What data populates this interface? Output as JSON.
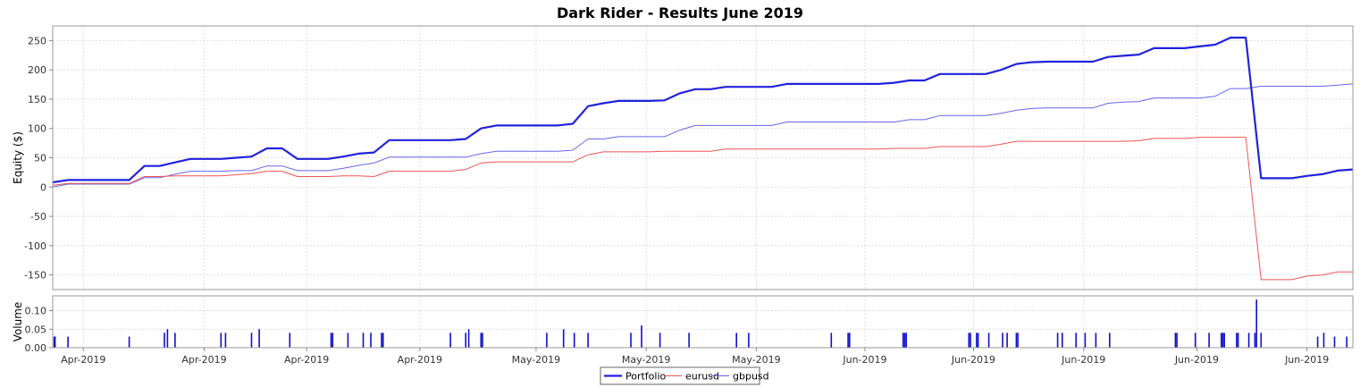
{
  "chart_data": {
    "type": "line",
    "title": "Dark Rider - Results June 2019",
    "upper": {
      "ylabel": "Equity ($)",
      "ylim": [
        -175,
        275
      ],
      "yticks": [
        250,
        200,
        150,
        100,
        50,
        0,
        -50,
        -100,
        -150
      ],
      "x": [
        0,
        1,
        2,
        3,
        4,
        5,
        6,
        7,
        8,
        9,
        10,
        11,
        12,
        13,
        14,
        15,
        16,
        17,
        18,
        19,
        20,
        21,
        22,
        23,
        24,
        25,
        26,
        27,
        28,
        29,
        30,
        31,
        32,
        33,
        34,
        35,
        36,
        37,
        38,
        39,
        40,
        41,
        42,
        43,
        44,
        45,
        46,
        47,
        48,
        49,
        50,
        51,
        52,
        53,
        54,
        55,
        56,
        57,
        58,
        59,
        60,
        61,
        62,
        63,
        64,
        65,
        66,
        67,
        68,
        69,
        70,
        71,
        72,
        73,
        74,
        75,
        76,
        77,
        78,
        79,
        80,
        81,
        82,
        83,
        84,
        85
      ],
      "series": [
        {
          "name": "Portfolio",
          "color": "#2222dd",
          "width": 2.2,
          "values": [
            8,
            12,
            12,
            12,
            12,
            12,
            36,
            36,
            42,
            48,
            48,
            48,
            50,
            52,
            66,
            66,
            48,
            48,
            48,
            52,
            57,
            59,
            80,
            80,
            80,
            80,
            80,
            82,
            100,
            105,
            105,
            105,
            105,
            105,
            108,
            138,
            143,
            147,
            147,
            147,
            148,
            160,
            167,
            167,
            171,
            171,
            171,
            171,
            176,
            176,
            176,
            176,
            176,
            176,
            176,
            178,
            182,
            182,
            193,
            193,
            193,
            193,
            200,
            210,
            213,
            214,
            214,
            214,
            214,
            222,
            224,
            226,
            237,
            237,
            237,
            240,
            243,
            255,
            255,
            15,
            15,
            15,
            19,
            22,
            28,
            30
          ]
        },
        {
          "name": "eurusd",
          "color": "#ee5555",
          "width": 1,
          "values": [
            3,
            6,
            6,
            6,
            6,
            6,
            18,
            18,
            19,
            19,
            19,
            19,
            21,
            23,
            27,
            27,
            18,
            18,
            18,
            19,
            19,
            18,
            27,
            27,
            27,
            27,
            27,
            30,
            41,
            43,
            43,
            43,
            43,
            43,
            43,
            55,
            60,
            60,
            60,
            60,
            61,
            61,
            61,
            61,
            65,
            65,
            65,
            65,
            65,
            65,
            65,
            65,
            65,
            65,
            65,
            66,
            66,
            66,
            69,
            69,
            69,
            69,
            73,
            78,
            78,
            78,
            78,
            78,
            78,
            78,
            78,
            79,
            83,
            83,
            83,
            85,
            85,
            85,
            85,
            -158,
            -158,
            -158,
            -152,
            -150,
            -145,
            -145
          ]
        },
        {
          "name": "gbpusd",
          "color": "#6666ee",
          "width": 1,
          "values": [
            0,
            5,
            5,
            5,
            5,
            5,
            16,
            16,
            22,
            27,
            27,
            27,
            28,
            28,
            36,
            36,
            28,
            28,
            28,
            32,
            37,
            41,
            51,
            51,
            51,
            51,
            51,
            51,
            57,
            61,
            61,
            61,
            61,
            61,
            63,
            82,
            82,
            86,
            86,
            86,
            86,
            97,
            105,
            105,
            105,
            105,
            105,
            105,
            111,
            111,
            111,
            111,
            111,
            111,
            111,
            111,
            115,
            115,
            122,
            122,
            122,
            122,
            126,
            131,
            134,
            135,
            135,
            135,
            135,
            143,
            145,
            146,
            152,
            152,
            152,
            152,
            155,
            168,
            168,
            172,
            172,
            172,
            172,
            172,
            174,
            176
          ]
        }
      ]
    },
    "lower": {
      "ylabel": "Volume",
      "ylim": [
        0,
        0.14
      ],
      "yticks": [
        "0.10",
        "0.05",
        "0.00"
      ],
      "bars": [
        {
          "x": 0.1,
          "v": 0.03
        },
        {
          "x": 0.15,
          "v": 0.03
        },
        {
          "x": 1.0,
          "v": 0.03
        },
        {
          "x": 5.0,
          "v": 0.03
        },
        {
          "x": 7.3,
          "v": 0.04
        },
        {
          "x": 7.5,
          "v": 0.05
        },
        {
          "x": 8.0,
          "v": 0.04
        },
        {
          "x": 11.0,
          "v": 0.04
        },
        {
          "x": 11.3,
          "v": 0.04
        },
        {
          "x": 13.0,
          "v": 0.04
        },
        {
          "x": 13.5,
          "v": 0.05
        },
        {
          "x": 15.5,
          "v": 0.04
        },
        {
          "x": 18.2,
          "v": 0.04
        },
        {
          "x": 18.3,
          "v": 0.04
        },
        {
          "x": 19.3,
          "v": 0.04
        },
        {
          "x": 20.3,
          "v": 0.04
        },
        {
          "x": 20.8,
          "v": 0.04
        },
        {
          "x": 21.5,
          "v": 0.04
        },
        {
          "x": 21.6,
          "v": 0.04
        },
        {
          "x": 26.0,
          "v": 0.04
        },
        {
          "x": 27.0,
          "v": 0.04
        },
        {
          "x": 27.2,
          "v": 0.05
        },
        {
          "x": 28.0,
          "v": 0.04
        },
        {
          "x": 28.1,
          "v": 0.04
        },
        {
          "x": 32.3,
          "v": 0.04
        },
        {
          "x": 33.4,
          "v": 0.05
        },
        {
          "x": 34.1,
          "v": 0.04
        },
        {
          "x": 35.0,
          "v": 0.04
        },
        {
          "x": 37.8,
          "v": 0.04
        },
        {
          "x": 38.5,
          "v": 0.06
        },
        {
          "x": 39.7,
          "v": 0.04
        },
        {
          "x": 41.6,
          "v": 0.04
        },
        {
          "x": 44.7,
          "v": 0.04
        },
        {
          "x": 45.5,
          "v": 0.04
        },
        {
          "x": 50.9,
          "v": 0.04
        },
        {
          "x": 52.0,
          "v": 0.04
        },
        {
          "x": 52.1,
          "v": 0.04
        },
        {
          "x": 55.6,
          "v": 0.04
        },
        {
          "x": 55.7,
          "v": 0.04
        },
        {
          "x": 55.8,
          "v": 0.04
        },
        {
          "x": 59.9,
          "v": 0.04
        },
        {
          "x": 60.0,
          "v": 0.04
        },
        {
          "x": 60.4,
          "v": 0.04
        },
        {
          "x": 60.5,
          "v": 0.04
        },
        {
          "x": 61.2,
          "v": 0.04
        },
        {
          "x": 62.1,
          "v": 0.04
        },
        {
          "x": 62.4,
          "v": 0.04
        },
        {
          "x": 63.0,
          "v": 0.04
        },
        {
          "x": 63.1,
          "v": 0.04
        },
        {
          "x": 65.7,
          "v": 0.04
        },
        {
          "x": 66.0,
          "v": 0.04
        },
        {
          "x": 66.9,
          "v": 0.04
        },
        {
          "x": 67.5,
          "v": 0.04
        },
        {
          "x": 68.2,
          "v": 0.04
        },
        {
          "x": 69.1,
          "v": 0.04
        },
        {
          "x": 73.4,
          "v": 0.04
        },
        {
          "x": 73.5,
          "v": 0.04
        },
        {
          "x": 74.7,
          "v": 0.04
        },
        {
          "x": 75.6,
          "v": 0.04
        },
        {
          "x": 76.4,
          "v": 0.04
        },
        {
          "x": 76.5,
          "v": 0.04
        },
        {
          "x": 76.6,
          "v": 0.04
        },
        {
          "x": 77.4,
          "v": 0.04
        },
        {
          "x": 77.5,
          "v": 0.04
        },
        {
          "x": 78.2,
          "v": 0.04
        },
        {
          "x": 78.6,
          "v": 0.04
        },
        {
          "x": 78.7,
          "v": 0.13
        },
        {
          "x": 79.0,
          "v": 0.04
        },
        {
          "x": 82.7,
          "v": 0.03
        },
        {
          "x": 83.1,
          "v": 0.04
        },
        {
          "x": 83.8,
          "v": 0.03
        },
        {
          "x": 84.6,
          "v": 0.03
        }
      ],
      "bar_color": "#1111cc"
    },
    "xticks": [
      {
        "x": 2.0,
        "label": "Apr-2019"
      },
      {
        "x": 9.9,
        "label": "Apr-2019"
      },
      {
        "x": 16.6,
        "label": "Apr-2019"
      },
      {
        "x": 24.0,
        "label": "Apr-2019"
      },
      {
        "x": 31.6,
        "label": "May-2019"
      },
      {
        "x": 38.8,
        "label": "May-2019"
      },
      {
        "x": 46.0,
        "label": "May-2019"
      },
      {
        "x": 53.1,
        "label": "Jun-2019"
      },
      {
        "x": 60.2,
        "label": "Jun-2019"
      },
      {
        "x": 67.4,
        "label": "Jun-2019"
      },
      {
        "x": 74.8,
        "label": "Jun-2019"
      },
      {
        "x": 82.0,
        "label": "Jun-2019"
      }
    ],
    "xlim": [
      0,
      85
    ],
    "grid": true,
    "legend": {
      "placement": "bottom-center",
      "entries": [
        {
          "name": "Portfolio",
          "color": "#2222dd",
          "width": 2.2
        },
        {
          "name": "eurusd",
          "color": "#ee5555",
          "width": 1
        },
        {
          "name": "gbpusd",
          "color": "#6666ee",
          "width": 1
        }
      ]
    }
  }
}
